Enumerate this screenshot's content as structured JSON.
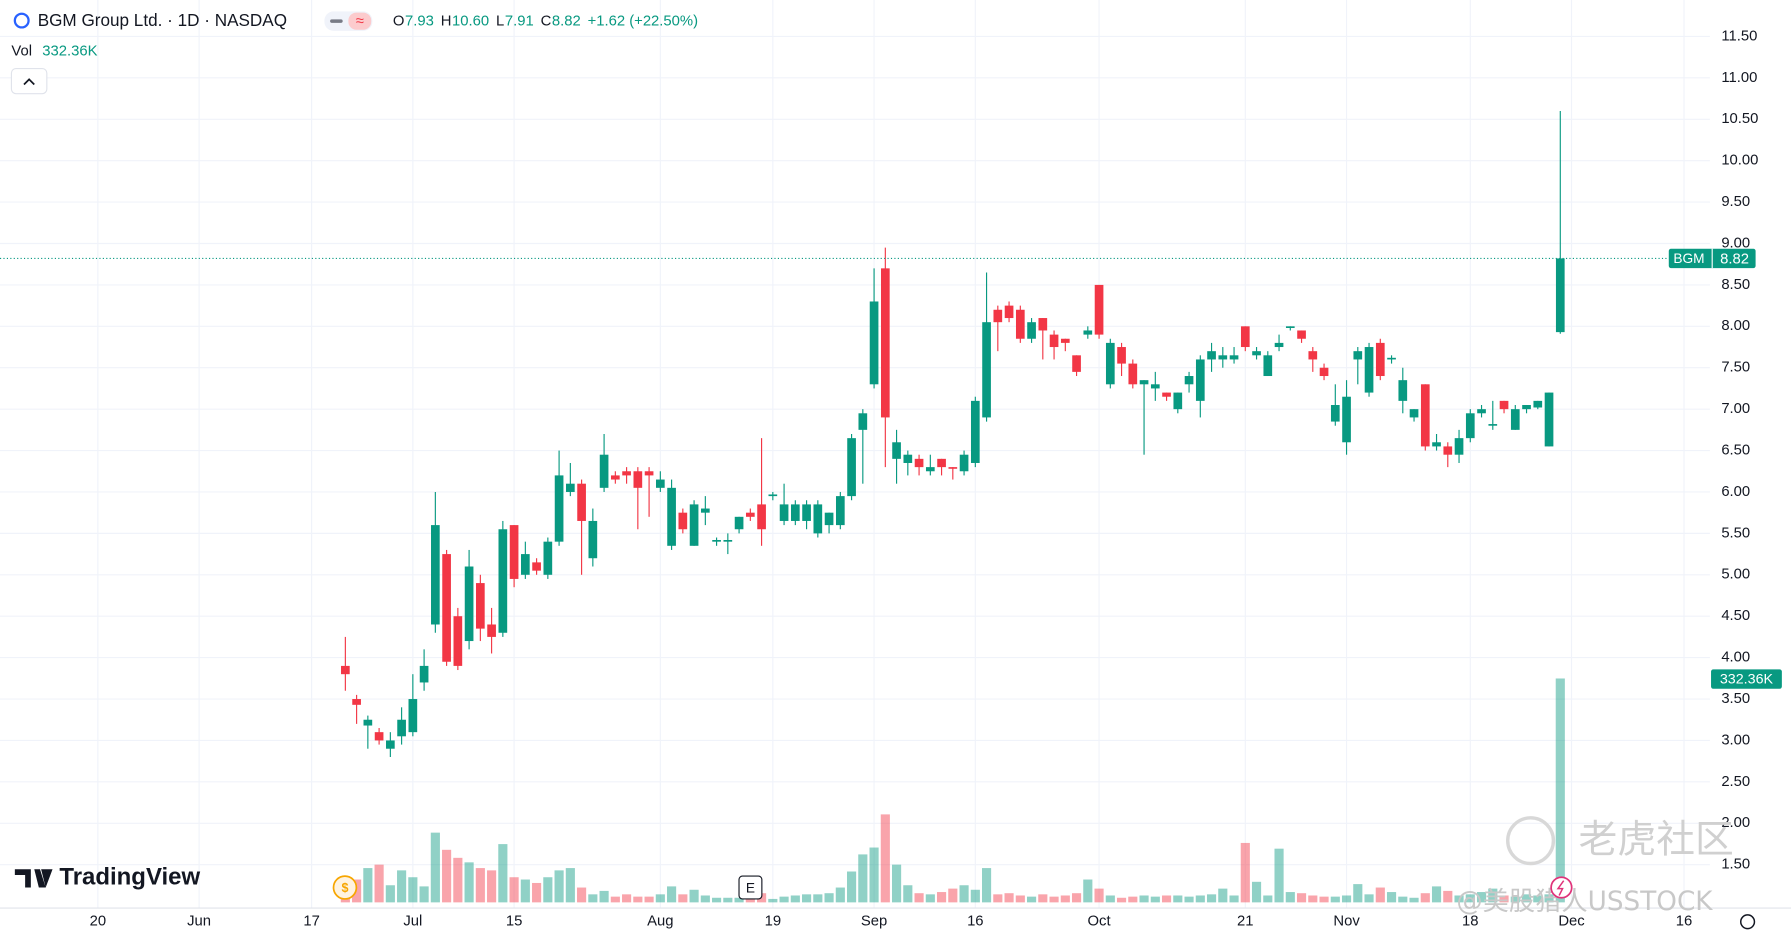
{
  "chart_data": {
    "type": "candlestick",
    "title": "BGM Group Ltd. · 1D · NASDAQ",
    "symbol": "BGM",
    "ohlc_labels": [
      "O",
      "H",
      "L",
      "C"
    ],
    "ohlc_values": [
      "7.93",
      "10.60",
      "7.91",
      "8.82"
    ],
    "change": "+1.62 (+22.50%)",
    "volume_name": "Vol",
    "volume_label": "332.36K",
    "brand": "TradingView",
    "events": [
      "$",
      "E"
    ],
    "watermarks": [
      "老虎社区",
      "@美股猎人USSTOCK"
    ],
    "up_color": "#089981",
    "down_color": "#f23645",
    "open": [
      3.9,
      3.5,
      3.18,
      3.1,
      2.9,
      3.05,
      3.1,
      3.7,
      4.4,
      5.25,
      4.5,
      4.2,
      4.9,
      4.4,
      4.3,
      5.6,
      5.0,
      5.15,
      5.0,
      5.4,
      6.0,
      6.1,
      5.2,
      6.05,
      6.2,
      6.25,
      6.25,
      6.25,
      6.05,
      5.35,
      5.75,
      5.35,
      5.75,
      5.4,
      5.4,
      5.55,
      5.75,
      5.85,
      5.95,
      5.65,
      5.65,
      5.65,
      5.5,
      5.6,
      5.6,
      5.95,
      6.75,
      7.3,
      8.7,
      6.4,
      6.35,
      6.4,
      6.25,
      6.4,
      6.3,
      6.25,
      6.35,
      6.9,
      8.2,
      8.25,
      8.2,
      7.85,
      8.1,
      7.9,
      7.85,
      7.65,
      7.9,
      8.5,
      7.3,
      7.75,
      7.55,
      7.3,
      7.25,
      7.2,
      7.0,
      7.3,
      7.1,
      7.6,
      7.6,
      7.6,
      8.0,
      7.65,
      7.4,
      7.75,
      7.98,
      7.95,
      7.7,
      7.5,
      6.85,
      6.6,
      7.6,
      7.2,
      7.8,
      7.6,
      7.1,
      6.9,
      7.3,
      6.55,
      6.55,
      6.45,
      6.65,
      6.95,
      6.8,
      7.1,
      6.75,
      7.0,
      7.02,
      6.55,
      7.93
    ],
    "high": [
      4.25,
      3.55,
      3.3,
      3.15,
      3.1,
      3.4,
      3.8,
      4.1,
      6.0,
      5.3,
      4.6,
      5.3,
      5.0,
      4.6,
      5.65,
      5.6,
      5.4,
      5.2,
      5.45,
      6.5,
      6.35,
      6.15,
      5.8,
      6.7,
      6.25,
      6.3,
      6.3,
      6.3,
      6.25,
      6.15,
      5.8,
      5.9,
      5.95,
      5.45,
      5.5,
      5.7,
      5.8,
      6.65,
      6.0,
      6.1,
      5.9,
      5.9,
      5.9,
      5.75,
      6.0,
      6.7,
      7.0,
      8.7,
      8.95,
      6.75,
      6.5,
      6.45,
      6.45,
      6.4,
      6.3,
      6.5,
      7.15,
      8.65,
      8.25,
      8.3,
      8.25,
      8.1,
      8.1,
      7.95,
      7.85,
      7.65,
      8.0,
      8.5,
      7.85,
      7.8,
      7.6,
      7.35,
      7.45,
      7.2,
      7.2,
      7.45,
      7.65,
      7.8,
      7.75,
      7.75,
      8.0,
      7.75,
      7.7,
      7.9,
      8.0,
      7.95,
      7.75,
      7.55,
      7.3,
      7.35,
      7.75,
      7.8,
      7.85,
      7.65,
      7.5,
      7.0,
      7.3,
      6.7,
      6.6,
      6.75,
      7.0,
      7.05,
      7.1,
      7.1,
      7.05,
      7.05,
      7.1,
      7.2,
      10.6
    ],
    "low": [
      3.6,
      3.2,
      2.9,
      2.95,
      2.8,
      2.95,
      3.05,
      3.6,
      4.3,
      3.9,
      3.85,
      4.1,
      4.2,
      4.05,
      4.25,
      4.85,
      4.95,
      5.0,
      4.95,
      5.35,
      5.95,
      5.0,
      5.1,
      6.0,
      6.1,
      6.1,
      5.55,
      5.7,
      6.0,
      5.3,
      5.5,
      5.35,
      5.6,
      5.35,
      5.25,
      5.5,
      5.65,
      5.35,
      5.9,
      5.6,
      5.6,
      5.55,
      5.45,
      5.5,
      5.55,
      5.9,
      6.1,
      7.25,
      6.3,
      6.1,
      6.2,
      6.2,
      6.2,
      6.2,
      6.15,
      6.2,
      6.3,
      6.85,
      7.7,
      8.05,
      7.8,
      7.8,
      7.6,
      7.6,
      7.7,
      7.4,
      7.85,
      7.85,
      7.25,
      7.4,
      7.25,
      6.45,
      7.1,
      7.1,
      6.95,
      7.2,
      6.9,
      7.45,
      7.5,
      7.55,
      7.7,
      7.6,
      7.4,
      7.7,
      7.95,
      7.8,
      7.45,
      7.35,
      6.8,
      6.45,
      7.3,
      7.15,
      7.35,
      7.55,
      6.95,
      6.85,
      6.5,
      6.5,
      6.3,
      6.35,
      6.6,
      6.9,
      6.75,
      6.95,
      6.75,
      6.95,
      7.0,
      6.55,
      7.91
    ],
    "close": [
      3.8,
      3.43,
      3.25,
      3.0,
      3.0,
      3.25,
      3.5,
      3.9,
      5.6,
      3.95,
      3.9,
      5.1,
      4.35,
      4.25,
      5.55,
      4.95,
      5.25,
      5.05,
      5.4,
      6.2,
      6.1,
      5.65,
      5.65,
      6.45,
      6.15,
      6.2,
      6.05,
      6.2,
      6.15,
      6.05,
      5.55,
      5.85,
      5.8,
      5.42,
      5.42,
      5.7,
      5.7,
      5.55,
      5.97,
      5.85,
      5.85,
      5.85,
      5.85,
      5.75,
      5.95,
      6.65,
      6.95,
      8.3,
      6.9,
      6.6,
      6.45,
      6.3,
      6.3,
      6.3,
      6.28,
      6.45,
      7.1,
      8.05,
      8.05,
      8.1,
      7.85,
      8.05,
      7.95,
      7.75,
      7.8,
      7.45,
      7.95,
      7.9,
      7.8,
      7.55,
      7.3,
      7.35,
      7.3,
      7.15,
      7.2,
      7.4,
      7.6,
      7.7,
      7.65,
      7.65,
      7.75,
      7.7,
      7.65,
      7.8,
      8.0,
      7.85,
      7.6,
      7.4,
      7.05,
      7.15,
      7.7,
      7.75,
      7.4,
      7.62,
      7.35,
      7.0,
      6.55,
      6.6,
      6.45,
      6.65,
      6.95,
      7.0,
      6.82,
      7.0,
      7.0,
      7.05,
      7.1,
      7.2,
      8.82
    ],
    "volume": [
      20400,
      33900,
      50900,
      56000,
      25400,
      47500,
      37300,
      23700,
      103500,
      78000,
      66100,
      59400,
      50900,
      47500,
      86500,
      37300,
      33900,
      28800,
      37300,
      47500,
      50900,
      22000,
      11900,
      17000,
      8500,
      11900,
      8500,
      8500,
      11900,
      23700,
      11900,
      18700,
      10200,
      6800,
      6800,
      6800,
      10200,
      13600,
      5100,
      8500,
      10200,
      11900,
      11900,
      13600,
      22000,
      45800,
      71200,
      81400,
      130600,
      56000,
      25400,
      13600,
      11900,
      15300,
      20400,
      25400,
      18700,
      50900,
      11900,
      13600,
      10200,
      8500,
      11900,
      8500,
      10200,
      13600,
      33900,
      20400,
      10200,
      6800,
      8500,
      10200,
      8500,
      10200,
      10200,
      8500,
      10200,
      11900,
      20400,
      10200,
      88200,
      30500,
      10200,
      79700,
      15300,
      13600,
      10200,
      8500,
      8500,
      10200,
      27100,
      11900,
      22000,
      15300,
      8500,
      6800,
      13600,
      23700,
      17000,
      10200,
      11900,
      15300,
      20400,
      10200,
      8500,
      11900,
      10200,
      11900,
      332360
    ],
    "xlim": [
      -30.7,
      121.3
    ],
    "xticks": [
      {
        "value": -22,
        "label": "20"
      },
      {
        "value": -13,
        "label": "Jun"
      },
      {
        "value": -3,
        "label": "17"
      },
      {
        "value": 6,
        "label": "Jul"
      },
      {
        "value": 15,
        "label": "15"
      },
      {
        "value": 28,
        "label": "Aug"
      },
      {
        "value": 38,
        "label": "19"
      },
      {
        "value": 47,
        "label": "Sep"
      },
      {
        "value": 56,
        "label": "16"
      },
      {
        "value": 67,
        "label": "Oct"
      },
      {
        "value": 80,
        "label": "21"
      },
      {
        "value": 89,
        "label": "Nov"
      },
      {
        "value": 100,
        "label": "18"
      },
      {
        "value": 109,
        "label": "Dec"
      },
      {
        "value": 119,
        "label": "16"
      }
    ],
    "ylim": [
      0.976,
      11.94
    ],
    "yticks": [
      {
        "value": 1.5,
        "label": "1.50"
      },
      {
        "value": 2,
        "label": "2.00"
      },
      {
        "value": 2.5,
        "label": "2.50"
      },
      {
        "value": 3,
        "label": "3.00"
      },
      {
        "value": 3.5,
        "label": "3.50"
      },
      {
        "value": 4,
        "label": "4.00"
      },
      {
        "value": 4.5,
        "label": "4.50"
      },
      {
        "value": 5,
        "label": "5.00"
      },
      {
        "value": 5.5,
        "label": "5.50"
      },
      {
        "value": 6,
        "label": "6.00"
      },
      {
        "value": 6.5,
        "label": "6.50"
      },
      {
        "value": 7,
        "label": "7.00"
      },
      {
        "value": 7.5,
        "label": "7.50"
      },
      {
        "value": 8,
        "label": "8.00"
      },
      {
        "value": 8.5,
        "label": "8.50"
      },
      {
        "value": 9,
        "label": "9.00"
      },
      {
        "value": 9.5,
        "label": "9.50"
      },
      {
        "value": 10,
        "label": "10.00"
      },
      {
        "value": 10.5,
        "label": "10.50"
      },
      {
        "value": 11,
        "label": "11.00"
      },
      {
        "value": 11.5,
        "label": "11.50"
      }
    ],
    "grid": true
  }
}
